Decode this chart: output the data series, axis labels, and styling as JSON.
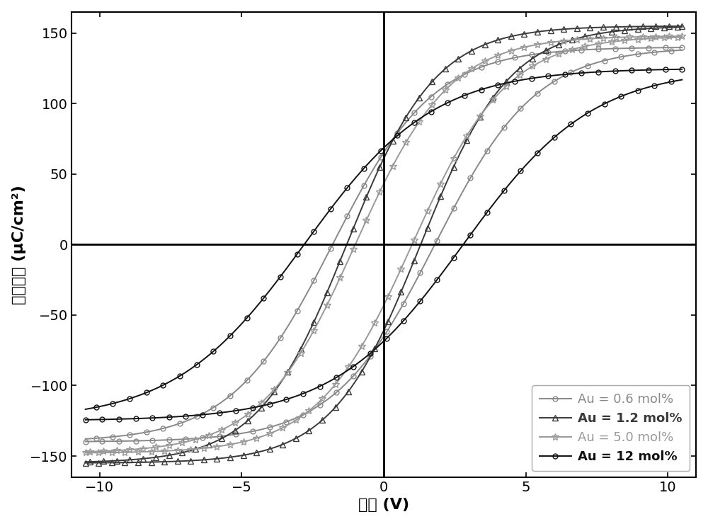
{
  "xlabel": "电压 (V)",
  "ylabel": "极化强度 (μC/cm²)",
  "xlim": [
    -11,
    11
  ],
  "ylim": [
    -165,
    165
  ],
  "xticks": [
    -10,
    -5,
    0,
    5,
    10
  ],
  "yticks": [
    -150,
    -100,
    -50,
    0,
    50,
    100,
    150
  ],
  "background_color": "#ffffff",
  "legend_fontsize": 13,
  "axis_fontsize": 16,
  "tick_fontsize": 14,
  "series": [
    {
      "label": "Au = 0.6 mol%",
      "color": "#888888",
      "marker": "o",
      "Ec": 1.8,
      "Psat": 140,
      "k": 0.28,
      "ms": 5,
      "mevery": 14,
      "lw": 1.4,
      "bold": false
    },
    {
      "label": "Au = 1.2 mol%",
      "color": "#3a3a3a",
      "marker": "^",
      "Ec": 1.3,
      "Psat": 155,
      "k": 0.32,
      "ms": 6,
      "mevery": 11,
      "lw": 1.4,
      "bold": true
    },
    {
      "label": "Au = 5.0 mol%",
      "color": "#999999",
      "marker": "*",
      "Ec": 1.0,
      "Psat": 148,
      "k": 0.3,
      "ms": 7,
      "mevery": 11,
      "lw": 1.4,
      "bold": false
    },
    {
      "label": "Au = 12 mol%",
      "color": "#111111",
      "marker": "o",
      "Ec": 2.8,
      "Psat": 125,
      "k": 0.22,
      "ms": 5,
      "mevery": 14,
      "lw": 1.4,
      "bold": true
    }
  ]
}
